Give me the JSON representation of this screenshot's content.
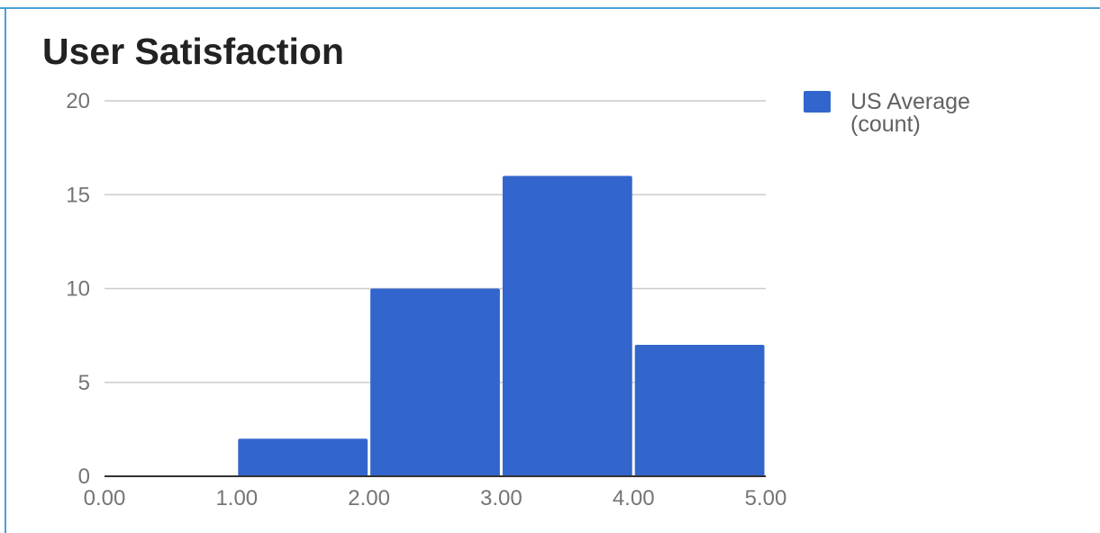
{
  "chart_data": {
    "type": "bar",
    "title": "User Satisfaction",
    "bins": [
      {
        "x0": 0.0,
        "x1": 1.0,
        "value": 0
      },
      {
        "x0": 1.0,
        "x1": 2.0,
        "value": 2
      },
      {
        "x0": 2.0,
        "x1": 3.0,
        "value": 10
      },
      {
        "x0": 3.0,
        "x1": 4.0,
        "value": 16
      },
      {
        "x0": 4.0,
        "x1": 5.0,
        "value": 7
      }
    ],
    "x_ticks": [
      "0.00",
      "1.00",
      "2.00",
      "3.00",
      "4.00",
      "5.00"
    ],
    "y_ticks": [
      "0",
      "5",
      "10",
      "15",
      "20"
    ],
    "xlim": [
      0,
      5
    ],
    "ylim": [
      0,
      20
    ],
    "grid": true,
    "legend": {
      "position": "right",
      "lines": [
        "US Average",
        "(count)"
      ]
    },
    "colors": {
      "bar": "#3366cc",
      "grid": "#cccccc",
      "axis": "#333333",
      "frame": "#4aa0d6"
    }
  }
}
